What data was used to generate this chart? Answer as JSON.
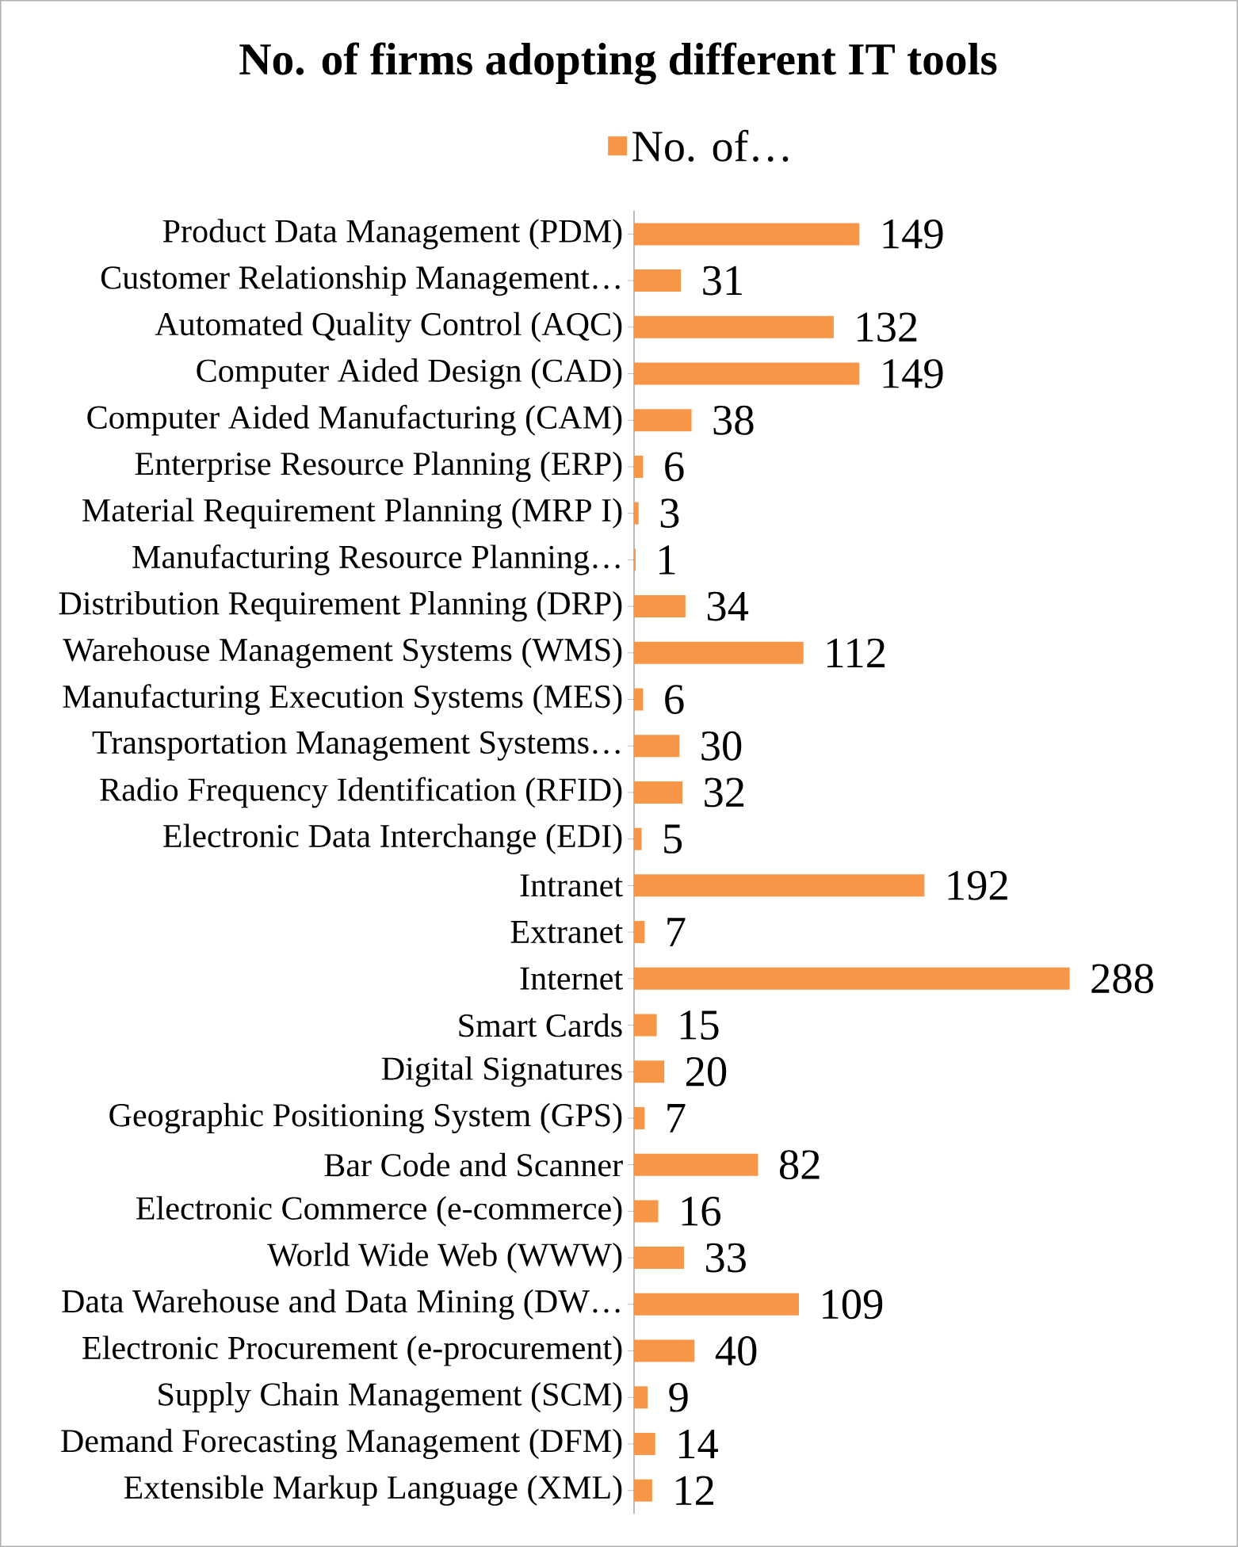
{
  "chart_data": {
    "type": "bar",
    "orientation": "horizontal",
    "title": "No. of firms adopting different IT tools",
    "categories": [
      "Product Data Management (PDM)",
      "Customer Relationship Management…",
      "Automated Quality Control (AQC)",
      "Computer Aided Design (CAD)",
      "Computer Aided Manufacturing (CAM)",
      "Enterprise Resource Planning (ERP)",
      "Material Requirement Planning (MRP I)",
      "Manufacturing Resource Planning…",
      "Distribution Requirement Planning (DRP)",
      "Warehouse Management Systems (WMS)",
      "Manufacturing Execution Systems (MES)",
      "Transportation Management Systems…",
      "Radio Frequency Identification (RFID)",
      "Electronic Data Interchange (EDI)",
      "Intranet",
      "Extranet",
      "Internet",
      "Smart Cards",
      "Digital Signatures",
      "Geographic Positioning System (GPS)",
      "Bar Code and Scanner",
      "Electronic Commerce (e-commerce)",
      "World Wide Web (WWW)",
      "Data Warehouse and Data Mining (DW…",
      "Electronic Procurement (e-procurement)",
      "Supply Chain  Management (SCM)",
      "Demand Forecasting Management (DFM)",
      "Extensible Markup Language (XML)"
    ],
    "series": [
      {
        "name": "No. of…",
        "color": "#f79646",
        "values": [
          149,
          31,
          132,
          149,
          38,
          6,
          3,
          1,
          34,
          112,
          6,
          30,
          32,
          5,
          192,
          7,
          288,
          15,
          20,
          7,
          82,
          16,
          33,
          109,
          40,
          9,
          14,
          12
        ]
      }
    ],
    "data_labels": true,
    "legend": "top"
  }
}
